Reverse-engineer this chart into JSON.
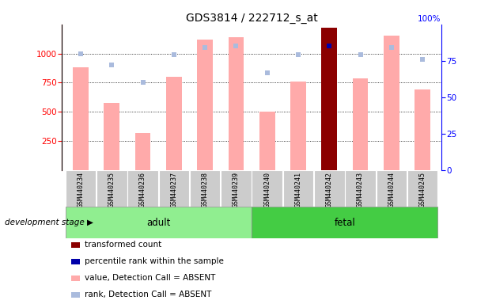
{
  "title": "GDS3814 / 222712_s_at",
  "samples": [
    "GSM440234",
    "GSM440235",
    "GSM440236",
    "GSM440237",
    "GSM440238",
    "GSM440239",
    "GSM440240",
    "GSM440241",
    "GSM440242",
    "GSM440243",
    "GSM440244",
    "GSM440245"
  ],
  "absent_values": [
    880,
    580,
    320,
    800,
    1120,
    1140,
    505,
    760,
    null,
    790,
    1155,
    690
  ],
  "absent_ranks_pct": [
    80,
    72,
    60,
    79,
    84,
    85,
    67,
    79,
    null,
    79,
    84,
    76
  ],
  "present_value": [
    null,
    null,
    null,
    null,
    null,
    null,
    null,
    null,
    1220,
    null,
    null,
    null
  ],
  "present_rank_pct": [
    null,
    null,
    null,
    null,
    null,
    null,
    null,
    null,
    85,
    null,
    null,
    null
  ],
  "ylim_left": [
    0,
    1250
  ],
  "ylim_right": [
    0,
    100
  ],
  "yticks_left": [
    250,
    500,
    750,
    1000
  ],
  "yticks_right": [
    0,
    25,
    50,
    75,
    100
  ],
  "absent_bar_color": "#FFAAAA",
  "absent_rank_color": "#AABBDD",
  "present_bar_color": "#8B0000",
  "present_rank_color": "#0000AA",
  "adult_bg_color": "#90EE90",
  "fetal_bg_color": "#44CC44",
  "sample_bg_color": "#CCCCCC",
  "grid_color": "#000000",
  "title_fontsize": 10,
  "tick_fontsize": 7.5,
  "legend_fontsize": 7.5
}
